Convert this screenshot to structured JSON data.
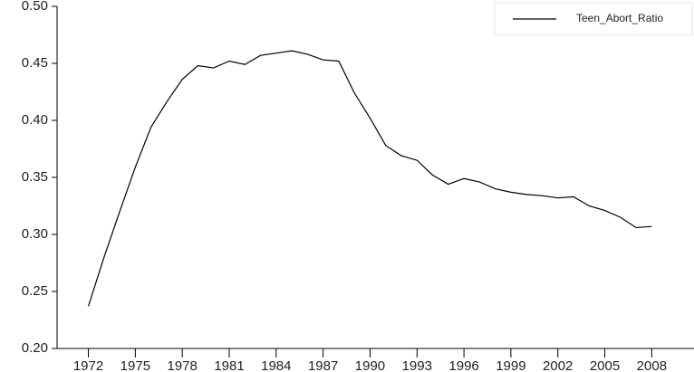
{
  "chart_data": {
    "type": "line",
    "x": [
      1972,
      1973,
      1974,
      1975,
      1976,
      1977,
      1978,
      1979,
      1980,
      1981,
      1982,
      1983,
      1984,
      1985,
      1986,
      1987,
      1988,
      1989,
      1990,
      1991,
      1992,
      1993,
      1994,
      1995,
      1996,
      1997,
      1998,
      1999,
      2000,
      2001,
      2002,
      2003,
      2004,
      2005,
      2006,
      2007,
      2008
    ],
    "series": [
      {
        "name": "Teen_Abort_Ratio",
        "color": "#000000",
        "values": [
          0.237,
          0.28,
          0.32,
          0.359,
          0.394,
          0.416,
          0.436,
          0.448,
          0.446,
          0.452,
          0.449,
          0.457,
          0.459,
          0.461,
          0.458,
          0.453,
          0.452,
          0.424,
          0.402,
          0.378,
          0.369,
          0.365,
          0.352,
          0.344,
          0.349,
          0.346,
          0.34,
          0.337,
          0.335,
          0.334,
          0.332,
          0.333,
          0.325,
          0.321,
          0.315,
          0.306,
          0.307
        ]
      }
    ],
    "xlim": [
      1970,
      2010.7
    ],
    "xticks": [
      1972,
      1975,
      1978,
      1981,
      1984,
      1987,
      1990,
      1993,
      1996,
      1999,
      2002,
      2005,
      2008
    ],
    "ylim": [
      0.2,
      0.5
    ],
    "yticks": [
      {
        "value": 0.2,
        "label": "0.20"
      },
      0.25,
      {
        "value": 0.3,
        "label": "0.30"
      },
      0.35,
      {
        "value": 0.4,
        "label": "0.40"
      },
      0.45,
      {
        "value": 0.5,
        "label": "0.50"
      }
    ],
    "legend": "top-right"
  }
}
